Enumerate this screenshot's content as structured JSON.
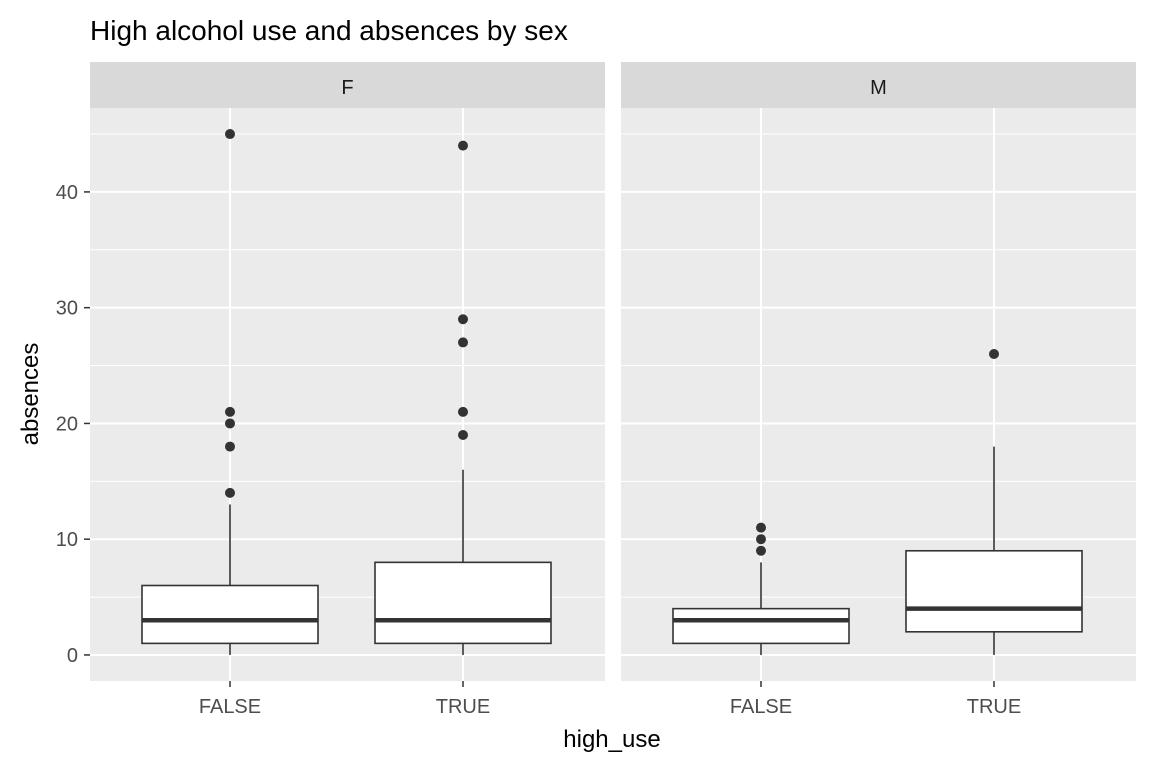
{
  "chart_data": {
    "type": "boxplot",
    "title": "High alcohol use and absences by sex",
    "xlabel": "high_use",
    "ylabel": "absences",
    "ylim": [
      -2.25,
      47.25
    ],
    "y_ticks": [
      0,
      10,
      20,
      30,
      40
    ],
    "categories": [
      "FALSE",
      "TRUE"
    ],
    "grid": true,
    "colors": {
      "panel_bg": "#ebebeb",
      "strip_bg": "#d9d9d9",
      "grid_major": "#ffffff",
      "box_fill": "#ffffff",
      "box_line": "#333333",
      "outlier": "#333333"
    },
    "facets": [
      {
        "label": "F",
        "boxes": [
          {
            "category": "FALSE",
            "q1": 1,
            "median": 3,
            "q3": 6,
            "whisker_low": 0,
            "whisker_high": 13,
            "outliers": [
              14,
              18,
              20,
              21,
              45
            ]
          },
          {
            "category": "TRUE",
            "q1": 1,
            "median": 3,
            "q3": 8,
            "whisker_low": 0,
            "whisker_high": 16,
            "outliers": [
              19,
              21,
              27,
              29,
              44
            ]
          }
        ]
      },
      {
        "label": "M",
        "boxes": [
          {
            "category": "FALSE",
            "q1": 1,
            "median": 3,
            "q3": 4,
            "whisker_low": 0,
            "whisker_high": 8,
            "outliers": [
              9,
              10,
              11
            ]
          },
          {
            "category": "TRUE",
            "q1": 2,
            "median": 4,
            "q3": 9,
            "whisker_low": 0,
            "whisker_high": 18,
            "outliers": [
              26
            ]
          }
        ]
      }
    ]
  }
}
